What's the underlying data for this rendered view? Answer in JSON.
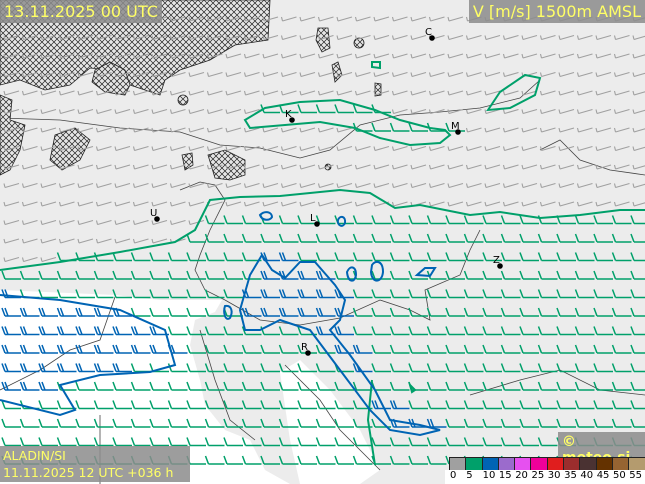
{
  "header": {
    "valid_time": "13.11.2025 00 UTC",
    "parameter": "V [m/s] 1500m AMSL"
  },
  "footer": {
    "model": "ALADIN/SI",
    "run": "11.11.2025 12 UTC +036 h",
    "copyright": "© meteo.si"
  },
  "legend": {
    "ticks": [
      "0",
      "5",
      "10",
      "15",
      "20",
      "25",
      "30",
      "35",
      "40",
      "45",
      "50",
      "55"
    ],
    "colors": [
      "#a0a0a0",
      "#00a06a",
      "#0064b4",
      "#9b6bcc",
      "#e650f0",
      "#f0009a",
      "#e01e1e",
      "#9b2d2d",
      "#4a3232",
      "#643200",
      "#966432",
      "#b49b6e"
    ]
  },
  "cities": [
    {
      "label": "C"
    },
    {
      "label": "K"
    },
    {
      "label": "M"
    },
    {
      "label": "U"
    },
    {
      "label": "L"
    },
    {
      "label": "Z"
    },
    {
      "label": "R"
    }
  ],
  "wind": {
    "direction": "west",
    "contours_ms": [
      5,
      10
    ]
  }
}
